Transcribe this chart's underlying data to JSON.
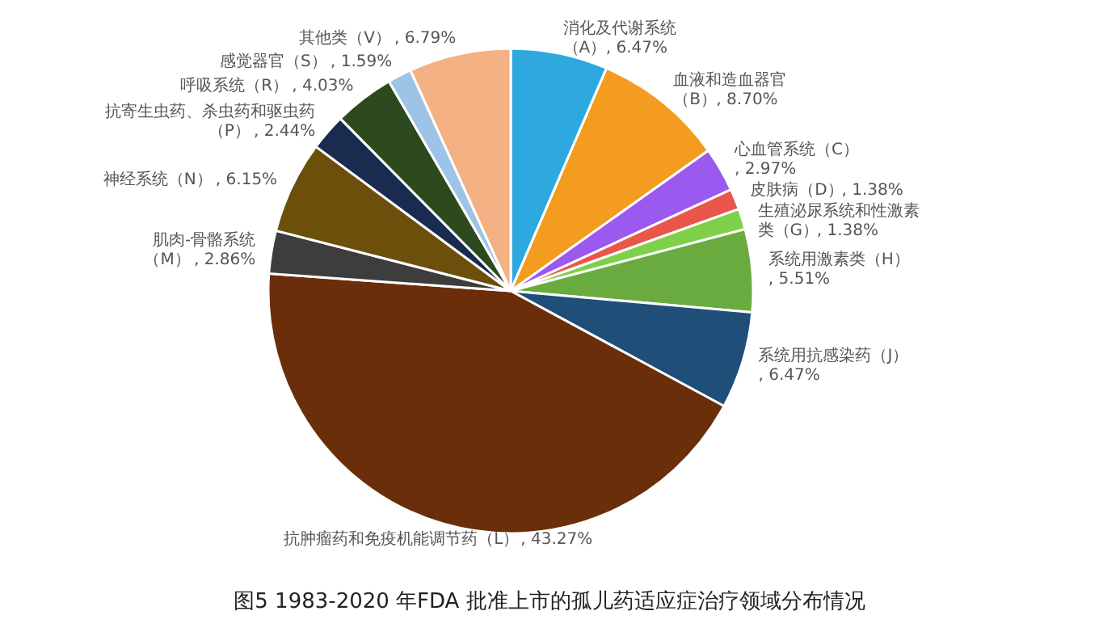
{
  "chart_data": {
    "type": "pie",
    "title": "图5 1983-2020 年FDA 批准上市的孤儿药适应症治疗领域分布情况",
    "categories": [
      "消化及代谢系统（A）",
      "血液和造血器官（B）",
      "心血管系统（C）",
      "皮肤病（D）",
      "生殖泌尿系统和性激素类（G）",
      "系统用激素类（H）",
      "系统用抗感染药（J）",
      "抗肿瘤药和免疫机能调节药（L）",
      "肌肉-骨骼系统（M）",
      "神经系统（N）",
      "抗寄生虫药、杀虫药和驱虫药（P）",
      "呼吸系统（R）",
      "感觉器官（S）",
      "其他类（V）"
    ],
    "values": [
      6.47,
      8.7,
      2.97,
      1.38,
      1.38,
      5.51,
      6.47,
      43.27,
      2.86,
      6.15,
      2.44,
      4.03,
      1.59,
      6.79
    ],
    "colors": [
      "#2ea9df",
      "#f39c1f",
      "#9b59f0",
      "#e8574a",
      "#7ed04a",
      "#6aab3f",
      "#1f4e79",
      "#6b2e0a",
      "#3d3d3d",
      "#6b4f0a",
      "#1a2b50",
      "#2d4a1e",
      "#9dc3e6",
      "#f4b183"
    ],
    "value_labels": [
      ", 6.47%",
      ", 8.70%",
      ", 2.97%",
      ", 1.38%",
      ", 1.38%",
      ", 5.51%",
      ", 6.47%",
      ", 43.27%",
      ", 2.86%",
      ", 6.15%",
      ", 2.44%",
      ", 4.03%",
      ", 1.59%",
      ", 6.79%"
    ]
  }
}
